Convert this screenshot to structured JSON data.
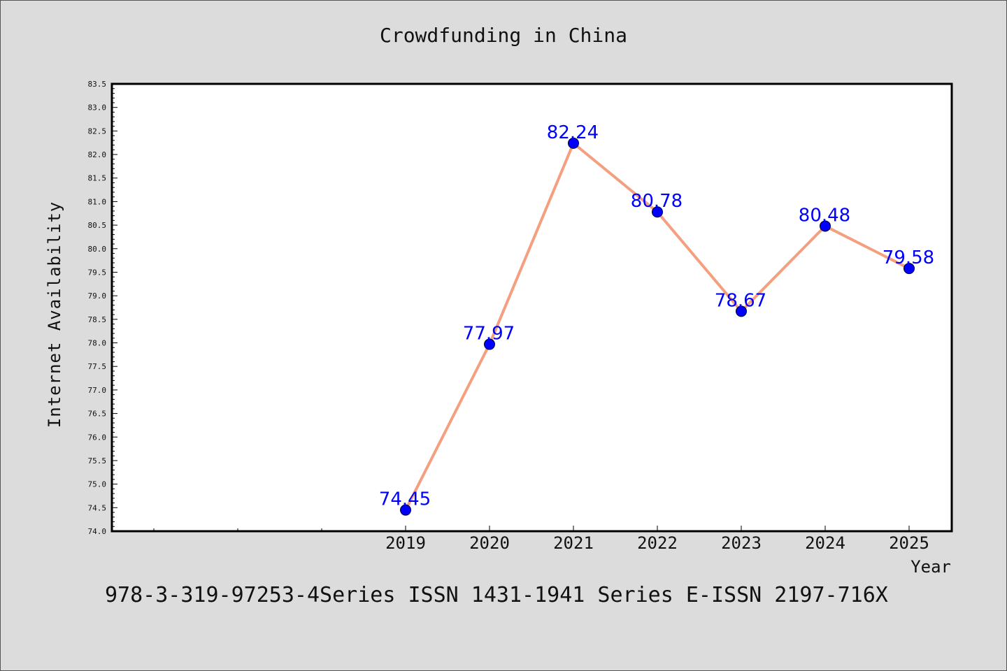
{
  "chart_data": {
    "type": "line",
    "title": "Crowdfunding in China",
    "xlabel": "Year",
    "ylabel": "Internet Availability",
    "categories": [
      "2019",
      "2020",
      "2021",
      "2022",
      "2023",
      "2024",
      "2025"
    ],
    "series": [
      {
        "values": [
          74.45,
          77.97,
          82.24,
          80.78,
          78.67,
          80.48,
          79.58
        ]
      }
    ],
    "data_labels": [
      "74.45",
      "77.97",
      "82.24",
      "80.78",
      "78.67",
      "80.48",
      "79.58"
    ],
    "ylim": [
      74.0,
      83.5
    ],
    "yticks": [
      "74.0",
      "74.5",
      "75.0",
      "75.5",
      "76.0",
      "76.5",
      "77.0",
      "77.5",
      "78.0",
      "78.5",
      "79.0",
      "79.5",
      "80.0",
      "80.5",
      "81.0",
      "81.5",
      "82.0",
      "82.5",
      "83.0",
      "83.5"
    ],
    "line_color": "#f4a080",
    "marker_color": "#0000ff",
    "label_color": "#0000ff",
    "grid": false,
    "legend": "none"
  },
  "footer": {
    "text": "978-3-319-97253-4Series ISSN 1431-1941 Series E-ISSN 2197-716X"
  }
}
